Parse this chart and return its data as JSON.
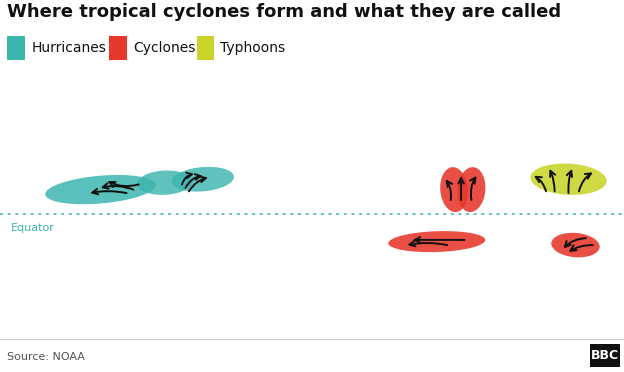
{
  "title": "Where tropical cyclones form and what they are called",
  "source": "Source: NOAA",
  "bbc_text": "BBC",
  "equator_label": "Equator",
  "legend": [
    {
      "label": "Hurricanes",
      "color": "#3db5af"
    },
    {
      "label": "Cyclones",
      "color": "#e8372b"
    },
    {
      "label": "Typhoons",
      "color": "#c8d42a"
    }
  ],
  "background_color": "#ffffff",
  "land_color": "#c0c0c0",
  "water_color": "#ffffff",
  "equator_color": "#3db5af",
  "title_fontsize": 13,
  "legend_fontsize": 10,
  "source_fontsize": 8,
  "hurricane_color": "#3db5af",
  "cyclone_color": "#e8372b",
  "typhoon_color": "#c8d42a",
  "arrow_color": "#111111",
  "equator_label_color": "#3db5af",
  "map_xlim": [
    -180,
    180
  ],
  "map_ylim": [
    -60,
    75
  ],
  "bottom_bar_color": "#f5f5f5"
}
